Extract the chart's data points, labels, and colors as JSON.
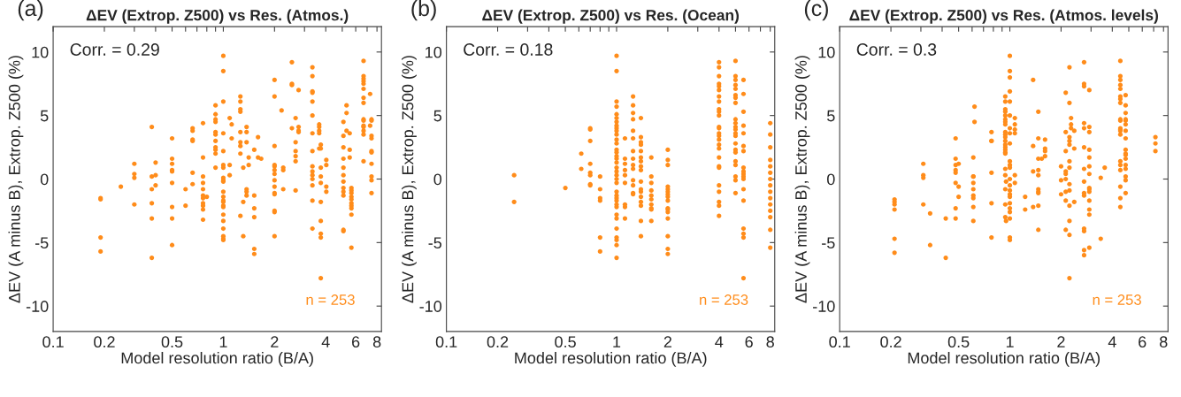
{
  "chart_data": [
    {
      "type": "scatter",
      "title": "ΔEV (Extrop. Z500) vs Res. (Atmos.)",
      "xlabel": "Model resolution ratio (B/A)",
      "ylabel": "ΔEV (A minus B), Extrop. Z500 (%)",
      "annotations": [
        "(a)",
        "Corr. = 0.29",
        "n = 253"
      ],
      "log": "x",
      "xlim": [
        0.1,
        8.5
      ],
      "ylim": [
        -12,
        12
      ],
      "xticks": [
        0.1,
        0.2,
        {
          "value": 0.3,
          "label": null
        },
        {
          "value": 0.4,
          "label": null
        },
        0.5,
        {
          "value": 0.6,
          "label": null
        },
        {
          "value": 0.7,
          "label": null
        },
        {
          "value": 0.8,
          "label": null
        },
        {
          "value": 0.9,
          "label": null
        },
        1,
        2,
        {
          "value": 3,
          "label": null
        },
        4,
        {
          "value": 5,
          "label": null
        },
        6,
        {
          "value": 7,
          "label": null
        },
        8
      ],
      "yticks": [
        -10,
        -5,
        0,
        5,
        10
      ],
      "grid": false,
      "legend": false,
      "marker": "circle",
      "series": [
        {
          "color": "#ff8c1a",
          "x": [
            0.19,
            0.19,
            0.19,
            0.19,
            0.25,
            0.3,
            0.3,
            0.3,
            0.3,
            0.38,
            0.38,
            0.38,
            0.38,
            0.38,
            0.38,
            0.4,
            0.4,
            0.4,
            0.5,
            0.5,
            0.5,
            0.5,
            0.5,
            0.5,
            0.5,
            0.5,
            0.5,
            0.6,
            0.6,
            0.66,
            0.66,
            0.66,
            0.66,
            0.66,
            0.66,
            0.76,
            0.76,
            0.76,
            0.76,
            0.76,
            0.76,
            0.76,
            0.76,
            0.76,
            0.76,
            0.76,
            0.8,
            0.9,
            0.9,
            0.9,
            0.9,
            0.9,
            0.9,
            0.9,
            0.9,
            0.9,
            0.9,
            0.9,
            1,
            1,
            1,
            1,
            1,
            1,
            1,
            1,
            1,
            1,
            1,
            1,
            1,
            1,
            1,
            1,
            1,
            1,
            1,
            1,
            1,
            1,
            1.09,
            1.09,
            1.09,
            1.12,
            1.12,
            1.26,
            1.26,
            1.26,
            1.26,
            1.26,
            1.26,
            1.26,
            1.26,
            1.26,
            1.31,
            1.31,
            1.31,
            1.37,
            1.37,
            1.37,
            1.37,
            1.37,
            1.37,
            1.41,
            1.41,
            1.52,
            1.52,
            1.52,
            1.52,
            1.52,
            1.52,
            1.6,
            1.6,
            1.67,
            2,
            2,
            2,
            2,
            2,
            2,
            2,
            2,
            2,
            2,
            2,
            2,
            2,
            2,
            2.2,
            2.25,
            2.25,
            2.25,
            2.53,
            2.53,
            2.53,
            2.53,
            2.66,
            2.66,
            2.66,
            2.66,
            2.66,
            2.66,
            2.77,
            2.77,
            2.77,
            2.77,
            3.34,
            3.34,
            3.34,
            3.34,
            3.34,
            3.34,
            3.34,
            3.34,
            3.34,
            3.34,
            3.34,
            3.34,
            3.34,
            3.34,
            3.34,
            3.66,
            3.66,
            3.66,
            3.66,
            3.66,
            3.74,
            3.74,
            3.74,
            3.74,
            3.74,
            3.74,
            3.74,
            3.74,
            3.74,
            3.74,
            4.03,
            4.03,
            4.03,
            4.03,
            5.08,
            5.08,
            5.08,
            5.08,
            5.08,
            5.08,
            5.08,
            5.08,
            5.08,
            5.08,
            5.08,
            5.08,
            5.3,
            5.3,
            5.3,
            5.53,
            5.53,
            5.53,
            5.66,
            5.66,
            5.66,
            5.66,
            5.66,
            5.66,
            5.66,
            5.66,
            5.66,
            5.66,
            6.67,
            6.67,
            6.67,
            6.67,
            6.67,
            6.67,
            6.67,
            6.67,
            6.67,
            6.67,
            6.67,
            6.67,
            6.67,
            6.67,
            6.67,
            7.29,
            7.29,
            7.43,
            7.43,
            7.43,
            7.43,
            7.43,
            7.43,
            7.43,
            7.43,
            7.43,
            7.43
          ],
          "values": [
            -1.5,
            -1.6,
            -4.6,
            -5.7,
            -0.6,
            1.2,
            0.4,
            0.1,
            -2.0,
            4.1,
            0.2,
            -0.8,
            -1.9,
            -3.1,
            -6.2,
            1.3,
            0.3,
            -0.5,
            3.2,
            1.6,
            1.2,
            0.7,
            0.6,
            -0.3,
            -2.2,
            -3.1,
            -5.2,
            -0.8,
            -2.1,
            4.0,
            3.8,
            3.1,
            3.0,
            0.5,
            -0.4,
            4.4,
            1.7,
            0.2,
            -0.3,
            -0.8,
            -1.3,
            -1.5,
            -1.9,
            -2.1,
            -2.4,
            -3.2,
            -1.4,
            5.8,
            5.1,
            4.7,
            4.5,
            3.7,
            3.5,
            3.0,
            2.5,
            2.3,
            2.0,
            0.9,
            9.7,
            8.5,
            6.1,
            3.6,
            2.2,
            1.1,
            0.9,
            0.1,
            -0.1,
            -0.2,
            -1.0,
            -1.4,
            -1.7,
            -1.8,
            -2.1,
            -2.2,
            -2.8,
            -3.3,
            -3.9,
            -4.5,
            -4.7,
            -4.8,
            4.8,
            1.1,
            0.3,
            4.3,
            3.2,
            6.5,
            6.1,
            5.5,
            5.3,
            3.7,
            2.9,
            2.6,
            2.0,
            -2.9,
            0.9,
            -1.8,
            -4.5,
            4.1,
            3.7,
            2.9,
            -0.8,
            -1.0,
            -1.3,
            1.7,
            1.1,
            2.3,
            -1.3,
            -2.3,
            -3.0,
            -5.5,
            -5.9,
            3.3,
            1.7,
            1.6,
            7.8,
            6.5,
            2.6,
            1.1,
            1.0,
            0.7,
            0.4,
            -0.1,
            -0.6,
            -1.1,
            -1.2,
            -2.5,
            -2.6,
            -4.5,
            5.4,
            0.9,
            0.7,
            -0.8,
            9.2,
            7.5,
            7.4,
            4.0,
            4.8,
            2.9,
            2.2,
            1.8,
            1.4,
            -0.9,
            7.0,
            4.1,
            3.8,
            3.7,
            8.8,
            8.1,
            6.9,
            6.8,
            6.1,
            5.0,
            3.6,
            2.2,
            1.0,
            0.6,
            0.3,
            0.0,
            -0.5,
            -1.7,
            -3.9,
            4.3,
            4.1,
            3.8,
            3.6,
            2.4,
            2.7,
            2.4,
            0.9,
            0.2,
            -0.3,
            -1.8,
            -3.3,
            -4.3,
            -4.6,
            -7.8,
            1.5,
            1.1,
            -0.6,
            -1.0,
            4.5,
            3.4,
            2.5,
            1.6,
            0.9,
            0.3,
            -0.2,
            -0.7,
            -1.0,
            -1.3,
            -4.0,
            -4.1,
            5.8,
            5.2,
            3.8,
            3.6,
            2.3,
            1.7,
            -0.7,
            -0.9,
            -1.1,
            -1.4,
            -1.6,
            -1.9,
            -2.1,
            -2.3,
            -2.8,
            -5.4,
            9.3,
            8.1,
            7.9,
            7.7,
            7.5,
            7.1,
            6.4,
            6.0,
            4.7,
            4.6,
            4.2,
            4.1,
            3.8,
            3.5,
            1.4,
            6.7,
            4.2,
            4.7,
            4.6,
            3.4,
            3.2,
            2.2,
            2.1,
            1.2,
            0.2,
            -0.1,
            -1.1
          ]
        }
      ]
    },
    {
      "type": "scatter",
      "title": "ΔEV (Extrop. Z500) vs Res. (Ocean)",
      "xlabel": "Model resolution ratio (B/A)",
      "ylabel": "ΔEV (A minus B), Extrop. Z500 (%)",
      "annotations": [
        "(b)",
        "Corr. = 0.18",
        "n = 253"
      ],
      "log": "x",
      "xlim": [
        0.1,
        8.5
      ],
      "ylim": [
        -12,
        12
      ],
      "xticks": [
        0.1,
        0.2,
        {
          "value": 0.3,
          "label": null
        },
        {
          "value": 0.4,
          "label": null
        },
        0.5,
        {
          "value": 0.6,
          "label": null
        },
        {
          "value": 0.7,
          "label": null
        },
        {
          "value": 0.8,
          "label": null
        },
        {
          "value": 0.9,
          "label": null
        },
        1,
        2,
        {
          "value": 3,
          "label": null
        },
        4,
        {
          "value": 5,
          "label": null
        },
        6,
        {
          "value": 7,
          "label": null
        },
        8
      ],
      "yticks": [
        -10,
        -5,
        0,
        5,
        10
      ],
      "grid": false,
      "legend": false,
      "marker": "circle",
      "series": [
        {
          "color": "#ff8c1a",
          "x": [
            0.25,
            0.25,
            0.5,
            0.62,
            0.62,
            0.7,
            0.7,
            0.7,
            0.7,
            0.7,
            0.7,
            0.7,
            0.7,
            0.8,
            0.8,
            0.8,
            0.8,
            0.8,
            0.8,
            1,
            1,
            1,
            1,
            1,
            1,
            1,
            1,
            1,
            1,
            1,
            1,
            1,
            1,
            1,
            1,
            1,
            1,
            1,
            1,
            1,
            1,
            1,
            1,
            1,
            1,
            1,
            1,
            1,
            1,
            1,
            1,
            1,
            1,
            1,
            1,
            1.12,
            1.12,
            1.12,
            1.12,
            1.12,
            1.12,
            1.12,
            1.12,
            1.12,
            1.25,
            1.25,
            1.25,
            1.25,
            1.25,
            1.25,
            1.25,
            1.25,
            1.25,
            1.25,
            1.25,
            1.25,
            1.25,
            1.25,
            1.39,
            1.39,
            1.39,
            1.39,
            1.39,
            1.39,
            1.39,
            1.39,
            1.39,
            1.39,
            1.39,
            1.39,
            1.39,
            1.39,
            1.39,
            1.39,
            1.39,
            1.6,
            1.6,
            1.6,
            1.6,
            1.6,
            1.6,
            1.6,
            1.6,
            1.6,
            1.6,
            2,
            2,
            2,
            2,
            2,
            2,
            2,
            2,
            2,
            2,
            2,
            2,
            2,
            2,
            2,
            2,
            4,
            4,
            4,
            4,
            4,
            4,
            4,
            4,
            4,
            4,
            4,
            4,
            4,
            4,
            4,
            4,
            4,
            4,
            4,
            4,
            4,
            4,
            4,
            4,
            4,
            4,
            5,
            5,
            5,
            5,
            5,
            5,
            5,
            5,
            5,
            5,
            5,
            5,
            5,
            5,
            5,
            5,
            5,
            5,
            5,
            5,
            5,
            5,
            5.57,
            5.57,
            5.57,
            5.57,
            5.57,
            5.57,
            5.57,
            5.57,
            5.57,
            5.57,
            5.57,
            5.57,
            5.57,
            5.57,
            5.57,
            5.57,
            5.57,
            5.57,
            8,
            8,
            8,
            8,
            8,
            8,
            8,
            8,
            8,
            8,
            8,
            8,
            8,
            8,
            8
          ],
          "values": [
            0.3,
            -1.8,
            -0.7,
            2.0,
            0.8,
            4.0,
            3.9,
            3.0,
            1.2,
            0.5,
            0.3,
            -0.4,
            -0.5,
            0.2,
            -0.8,
            -1.5,
            -1.7,
            -4.6,
            -5.7,
            9.7,
            8.5,
            6.1,
            5.7,
            5.1,
            4.8,
            4.5,
            4.2,
            4.0,
            3.8,
            3.5,
            3.1,
            2.8,
            2.3,
            2.1,
            1.8,
            1.6,
            1.3,
            0.9,
            0.6,
            0.3,
            0.0,
            -0.3,
            -1.0,
            -1.3,
            -1.5,
            -1.7,
            -2.0,
            -2.2,
            -2.8,
            -3.1,
            -3.9,
            -4.6,
            -4.8,
            -5.2,
            -6.2,
            3.2,
            1.6,
            1.2,
            0.7,
            0.3,
            -0.3,
            -2.0,
            -2.2,
            -3.1,
            6.5,
            5.8,
            5.2,
            4.7,
            3.8,
            3.2,
            2.2,
            1.6,
            1.1,
            0.8,
            -0.1,
            -0.5,
            -1.1,
            -1.2,
            4.8,
            3.3,
            2.9,
            2.7,
            2.2,
            1.7,
            1.4,
            1.0,
            0.7,
            -0.2,
            -0.8,
            -1.0,
            -1.4,
            -1.8,
            -2.1,
            -3.3,
            -4.5,
            1.7,
            0.2,
            -0.3,
            -0.9,
            -1.3,
            -1.6,
            -2.0,
            -2.3,
            -2.4,
            -3.3,
            2.3,
            1.5,
            1.1,
            -0.6,
            -0.8,
            -1.0,
            -1.2,
            -1.4,
            -1.7,
            -2.3,
            -2.4,
            -2.6,
            -3.1,
            -4.5,
            -5.5,
            -5.9,
            9.2,
            8.8,
            8.1,
            7.5,
            7.3,
            7.0,
            6.5,
            6.1,
            5.5,
            5.3,
            5.0,
            4.1,
            4.0,
            3.6,
            3.4,
            3.1,
            2.7,
            2.4,
            1.7,
            1.0,
            0.9,
            -0.5,
            -1.0,
            -1.8,
            -2.1,
            -2.9,
            9.3,
            8.1,
            7.8,
            7.4,
            7.1,
            6.6,
            6.4,
            6.0,
            4.7,
            4.4,
            4.1,
            3.9,
            3.6,
            3.4,
            2.8,
            2.3,
            2.1,
            1.4,
            1.1,
            0.2,
            -0.1,
            -1.1,
            7.8,
            6.7,
            5.3,
            4.2,
            3.6,
            2.6,
            2.2,
            0.9,
            0.6,
            0.4,
            0.2,
            0.0,
            -0.8,
            -1.7,
            -3.9,
            -4.3,
            -4.6,
            -7.8,
            4.4,
            3.5,
            2.5,
            1.5,
            1.0,
            0.5,
            0.0,
            -0.5,
            -1.0,
            -1.5,
            -2.0,
            -2.5,
            -3.0,
            -4.0,
            -5.4
          ]
        }
      ]
    },
    {
      "type": "scatter",
      "title": "ΔEV (Extrop. Z500) vs Res. (Atmos. levels)",
      "xlabel": "Model resolution ratio (B/A)",
      "ylabel": "ΔEV (A minus B), Extrop. Z500 (%)",
      "annotations": [
        "(c)",
        "Corr. = 0.3",
        "n = 253"
      ],
      "log": "x",
      "xlim": [
        0.1,
        8.5
      ],
      "ylim": [
        -12,
        12
      ],
      "xticks": [
        0.1,
        0.2,
        {
          "value": 0.3,
          "label": null
        },
        {
          "value": 0.4,
          "label": null
        },
        0.5,
        {
          "value": 0.6,
          "label": null
        },
        {
          "value": 0.7,
          "label": null
        },
        {
          "value": 0.8,
          "label": null
        },
        {
          "value": 0.9,
          "label": null
        },
        1,
        2,
        {
          "value": 3,
          "label": null
        },
        4,
        {
          "value": 5,
          "label": null
        },
        6,
        {
          "value": 7,
          "label": null
        },
        8
      ],
      "yticks": [
        -10,
        -5,
        0,
        5,
        10
      ],
      "grid": false,
      "legend": false,
      "marker": "circle",
      "series": [
        {
          "color": "#ff8c1a",
          "x": [
            0.21,
            0.21,
            0.21,
            0.21,
            0.21,
            0.21,
            0.31,
            0.31,
            0.31,
            0.31,
            0.34,
            0.34,
            0.42,
            0.42,
            0.48,
            0.48,
            0.48,
            0.48,
            0.48,
            0.48,
            0.48,
            0.48,
            0.5,
            0.5,
            0.5,
            0.62,
            0.62,
            0.61,
            0.61,
            0.61,
            0.61,
            0.61,
            0.61,
            0.61,
            0.61,
            0.61,
            0.78,
            0.78,
            0.78,
            0.78,
            0.78,
            0.78,
            0.94,
            0.94,
            0.94,
            0.94,
            0.94,
            0.94,
            0.94,
            0.94,
            0.94,
            0.94,
            0.94,
            0.94,
            0.94,
            0.94,
            0.94,
            0.94,
            0.94,
            0.94,
            0.94,
            0.94,
            0.94,
            0.94,
            0.95,
            0.95,
            1,
            1,
            1,
            1,
            1,
            1,
            1,
            1,
            1,
            1,
            1,
            1,
            1,
            1,
            1,
            1,
            1,
            1,
            1,
            1,
            1,
            1,
            1,
            1.07,
            1.07,
            1.07,
            1.07,
            1.07,
            1.07,
            1.23,
            1.23,
            1.37,
            1.37,
            1.37,
            1.37,
            1.47,
            1.47,
            1.47,
            1.47,
            1.47,
            1.47,
            1.47,
            1.47,
            1.47,
            1.47,
            1.54,
            1.61,
            1.61,
            1.61,
            1.61,
            2,
            2,
            2,
            2.13,
            2.13,
            2.13,
            2.13,
            2.13,
            2.13,
            2.13,
            2.13,
            2.13,
            2.24,
            2.24,
            2.24,
            2.24,
            2.24,
            2.24,
            2.24,
            2.24,
            2.24,
            2.24,
            2.24,
            2.24,
            2.24,
            2.29,
            2.29,
            2.29,
            2.39,
            2.39,
            2.39,
            2.73,
            2.73,
            2.73,
            2.73,
            2.73,
            2.73,
            2.73,
            2.73,
            2.73,
            2.73,
            2.73,
            2.73,
            2.73,
            2.73,
            2.93,
            2.93,
            2.93,
            2.93,
            2.93,
            2.93,
            2.93,
            2.93,
            2.93,
            2.93,
            2.93,
            2.93,
            2.93,
            2.93,
            3.42,
            3.42,
            3.61,
            4.46,
            4.46,
            4.46,
            4.46,
            4.46,
            4.46,
            4.46,
            4.46,
            4.46,
            4.46,
            4.46,
            4.46,
            4.46,
            4.46,
            4.46,
            4.46,
            4.46,
            4.46,
            4.46,
            4.46,
            4.79,
            4.79,
            4.79,
            4.79,
            4.79,
            4.79,
            4.79,
            4.79,
            4.79,
            4.79,
            4.79,
            4.79,
            4.79,
            4.79,
            4.79,
            4.79,
            4.79,
            7.17,
            7.17,
            7.17
          ],
          "values": [
            -1.6,
            -1.8,
            -2.0,
            -2.4,
            -4.7,
            -5.8,
            1.2,
            0.3,
            0.1,
            -2.0,
            -2.7,
            -5.2,
            -3.1,
            -6.2,
            3.2,
            1.6,
            1.1,
            0.7,
            0.5,
            -0.3,
            -2.3,
            -3.1,
            1.2,
            -0.6,
            -1.4,
            5.7,
            4.5,
            1.7,
            0.2,
            0.2,
            -0.3,
            -0.8,
            -1.3,
            -1.5,
            -2.2,
            -3.3,
            3.7,
            3.0,
            3.0,
            0.5,
            -1.9,
            -4.6,
            6.5,
            6.1,
            5.5,
            5.3,
            5.0,
            4.7,
            4.5,
            4.3,
            3.7,
            3.5,
            3.3,
            3.0,
            2.7,
            2.5,
            2.3,
            2.1,
            2.0,
            0.8,
            0.3,
            -0.8,
            -2.0,
            -3.0,
            -0.2,
            -3.3,
            9.7,
            8.5,
            8.0,
            6.9,
            6.1,
            5.0,
            4.0,
            3.6,
            2.8,
            1.4,
            1.1,
            0.9,
            0.0,
            -0.5,
            -0.9,
            -1.2,
            -1.4,
            -1.9,
            -2.3,
            -2.6,
            -3.1,
            -4.6,
            -4.8,
            4.8,
            4.3,
            3.9,
            3.6,
            0.3,
            -0.3,
            -1.4,
            -2.4,
            7.8,
            2.6,
            0.6,
            -2.2,
            5.3,
            3.2,
            1.6,
            0.7,
            0.3,
            -0.8,
            -1.0,
            -1.1,
            -2.1,
            -4.0,
            1.6,
            3.1,
            2.4,
            2.2,
            1.8,
            1.0,
            -0.1,
            -1.2,
            6.8,
            3.7,
            2.2,
            0.6,
            0.4,
            0.0,
            -1.0,
            -1.7,
            -4.0,
            8.8,
            6.0,
            3.3,
            3.0,
            2.7,
            1.4,
            0.9,
            -0.4,
            -0.9,
            -2.1,
            -3.3,
            -4.4,
            -7.8,
            4.8,
            4.3,
            4.0,
            3.8,
            2.4,
            -1.8,
            9.2,
            7.5,
            7.3,
            4.4,
            4.0,
            2.5,
            0.8,
            -0.2,
            -1.1,
            -1.3,
            -3.9,
            -4.1,
            -5.6,
            -6.0,
            7.0,
            4.1,
            3.7,
            2.3,
            1.7,
            1.0,
            0.4,
            -0.7,
            -0.8,
            -1.0,
            -1.7,
            -2.4,
            -2.8,
            -5.4,
            0.1,
            -4.7,
            0.9,
            9.3,
            8.1,
            7.8,
            7.4,
            7.1,
            6.5,
            6.3,
            6.0,
            4.7,
            4.6,
            4.0,
            3.9,
            3.8,
            3.5,
            1.4,
            1.1,
            0.7,
            -0.6,
            -1.5,
            -2.2,
            6.6,
            5.8,
            5.2,
            4.7,
            4.6,
            4.3,
            3.8,
            3.2,
            2.3,
            2.0,
            1.9,
            1.6,
            1.1,
            0.8,
            0.2,
            -0.1,
            -1.1,
            3.3,
            2.8,
            2.2
          ]
        }
      ]
    }
  ]
}
